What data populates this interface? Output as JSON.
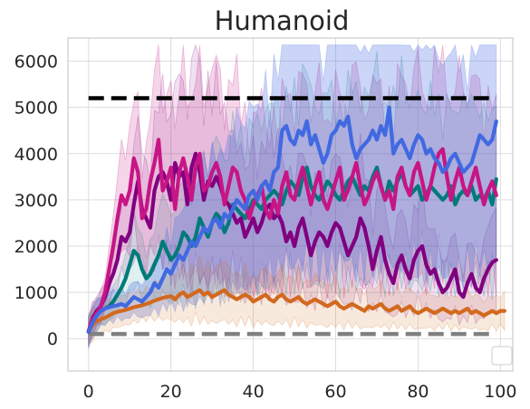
{
  "chart_data": {
    "type": "line",
    "title": "Humanoid",
    "xlabel": "",
    "ylabel": "",
    "xlim": [
      -5,
      103
    ],
    "ylim": [
      -700,
      6500
    ],
    "xticks": [
      "0",
      "20",
      "40",
      "60",
      "80",
      "100"
    ],
    "yticks": [
      "0",
      "1000",
      "2000",
      "3000",
      "4000",
      "5000",
      "6000"
    ],
    "grid": true,
    "legend": "bottom-right (empty)",
    "reference_lines": [
      {
        "y": 5200,
        "color": "#000000",
        "style": "dashed"
      },
      {
        "y": 100,
        "color": "#808080",
        "style": "dashed"
      }
    ],
    "series": [
      {
        "color": "#c71585",
        "shade": 0.18,
        "values": [
          150,
          420,
          550,
          700,
          1000,
          1500,
          2000,
          2600,
          3100,
          2900,
          3200,
          3900,
          3600,
          2600,
          2800,
          3400,
          3800,
          4300,
          3200,
          3400,
          3700,
          2800,
          3600,
          3900,
          3500,
          3000,
          3700,
          4000,
          3200,
          3300,
          3600,
          3800,
          3500,
          2900,
          3300,
          3700,
          3600,
          3200,
          3000,
          2600,
          2900,
          3100,
          3300,
          2800,
          2600,
          3000,
          2700,
          3300,
          3600,
          3100,
          3000,
          3400,
          3700,
          3300,
          2900,
          3300,
          3600,
          3000,
          2800,
          3100,
          3400,
          3700,
          3000,
          3200,
          3500,
          3800,
          3300,
          2900,
          3100,
          3400,
          3600,
          3300,
          3000,
          3200,
          2800,
          3500,
          3700,
          3300,
          3100,
          3600,
          3800,
          3400,
          3000,
          3300,
          3700,
          4000,
          4100,
          3500,
          3000,
          3400,
          3700,
          3300,
          3100,
          3400,
          3700,
          3300,
          2900,
          3200,
          3400,
          3100
        ]
      },
      {
        "color": "#800080",
        "shade": 0.12,
        "values": [
          150,
          450,
          600,
          700,
          900,
          1200,
          1400,
          1700,
          2200,
          2100,
          2300,
          2900,
          3400,
          2800,
          2600,
          2400,
          3200,
          3500,
          3600,
          3400,
          3000,
          3800,
          3500,
          3600,
          2900,
          3700,
          4000,
          3600,
          3000,
          3400,
          3300,
          3500,
          3300,
          3000,
          2900,
          2700,
          2500,
          2600,
          2200,
          2400,
          2600,
          2300,
          2500,
          2800,
          2900,
          2600,
          2700,
          2500,
          2100,
          2300,
          2000,
          2400,
          2600,
          2200,
          1800,
          2100,
          2300,
          2200,
          2000,
          2300,
          2500,
          2400,
          2100,
          1800,
          2000,
          2200,
          2600,
          2400,
          2000,
          1500,
          1900,
          2200,
          1700,
          1400,
          1200,
          1600,
          1800,
          1500,
          1300,
          1700,
          1900,
          2000,
          1600,
          1400,
          1500,
          1200,
          1000,
          1100,
          1300,
          1500,
          1000,
          900,
          1200,
          1400,
          1100,
          1000,
          1300,
          1500,
          1650,
          1700
        ]
      },
      {
        "color": "#007a7a",
        "shade": 0.12,
        "values": [
          150,
          400,
          520,
          600,
          650,
          700,
          800,
          950,
          1100,
          1300,
          1600,
          1900,
          1800,
          1500,
          1300,
          1400,
          1600,
          1800,
          2100,
          1900,
          1700,
          1800,
          2000,
          2300,
          2200,
          2000,
          2200,
          2600,
          2400,
          2200,
          2500,
          2700,
          2600,
          2300,
          2500,
          2900,
          2800,
          2700,
          2600,
          2800,
          3000,
          2900,
          2800,
          3000,
          3100,
          3200,
          3100,
          2900,
          3200,
          3400,
          3300,
          3100,
          3500,
          3700,
          3300,
          3100,
          3000,
          3200,
          3400,
          3300,
          3100,
          3000,
          3200,
          3400,
          3500,
          3300,
          3100,
          3300,
          3200,
          3500,
          3700,
          3300,
          3000,
          3400,
          3200,
          3400,
          3600,
          3300,
          3100,
          3200,
          3300,
          3000,
          3100,
          3300,
          3200,
          3100,
          3000,
          3100,
          3300,
          2900,
          3100,
          3200,
          3100,
          3300,
          3000,
          3100,
          3000,
          3200,
          2900,
          3450
        ]
      },
      {
        "color": "#4169e1",
        "shade": 0.28,
        "values": [
          150,
          350,
          500,
          600,
          650,
          680,
          700,
          720,
          750,
          700,
          800,
          900,
          850,
          800,
          900,
          1000,
          1200,
          1100,
          1300,
          1500,
          1400,
          1600,
          1800,
          1700,
          1900,
          2100,
          2000,
          2200,
          2400,
          2300,
          2500,
          2600,
          2400,
          2700,
          2600,
          2800,
          3000,
          2900,
          2800,
          3100,
          3200,
          3000,
          3300,
          3400,
          3200,
          3600,
          3700,
          4500,
          4600,
          4300,
          4200,
          4500,
          4400,
          4700,
          4200,
          4400,
          4100,
          3800,
          4000,
          4400,
          4500,
          4700,
          4600,
          4800,
          4200,
          3900,
          4100,
          4200,
          4300,
          4500,
          4300,
          4600,
          4400,
          5000,
          4000,
          4200,
          4300,
          4100,
          3900,
          4200,
          4400,
          4300,
          4000,
          4100,
          3900,
          3800,
          3600,
          3700,
          3900,
          4000,
          3800,
          3600,
          3700,
          3800,
          4100,
          4400,
          4300,
          4200,
          4300,
          4700
        ]
      },
      {
        "color": "#d2691e",
        "shade": 0.15,
        "values": [
          150,
          300,
          380,
          420,
          450,
          500,
          550,
          580,
          600,
          620,
          650,
          680,
          700,
          720,
          750,
          780,
          820,
          850,
          880,
          900,
          920,
          850,
          950,
          1000,
          900,
          950,
          1000,
          1050,
          950,
          1000,
          900,
          950,
          1000,
          1050,
          950,
          900,
          850,
          900,
          950,
          900,
          800,
          850,
          900,
          950,
          850,
          800,
          900,
          950,
          850,
          800,
          850,
          900,
          800,
          750,
          800,
          850,
          800,
          750,
          700,
          750,
          800,
          700,
          650,
          700,
          750,
          700,
          650,
          600,
          700,
          650,
          700,
          750,
          650,
          600,
          650,
          700,
          600,
          650,
          700,
          600,
          550,
          600,
          650,
          600,
          550,
          600,
          650,
          600,
          550,
          600,
          550,
          600,
          650,
          550,
          600,
          550,
          500,
          550,
          600,
          550,
          600,
          600
        ]
      }
    ]
  }
}
